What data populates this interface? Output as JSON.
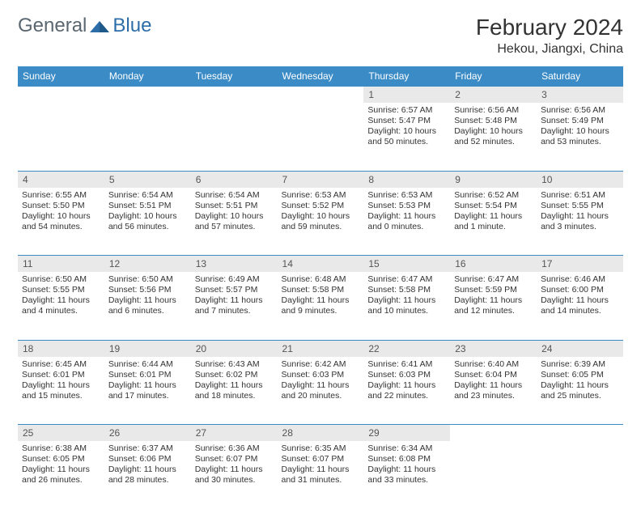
{
  "logo": {
    "text1": "General",
    "text2": "Blue"
  },
  "title": "February 2024",
  "location": "Hekou, Jiangxi, China",
  "colors": {
    "header_bg": "#3b8bc7",
    "header_text": "#ffffff",
    "daynum_bg": "#e9e9e9",
    "border": "#3b8bc7",
    "logo_gray": "#5a6770",
    "logo_blue": "#2d6ea8"
  },
  "dayNames": [
    "Sunday",
    "Monday",
    "Tuesday",
    "Wednesday",
    "Thursday",
    "Friday",
    "Saturday"
  ],
  "weeks": [
    [
      null,
      null,
      null,
      null,
      {
        "d": "1",
        "sr": "6:57 AM",
        "ss": "5:47 PM",
        "dl": "10 hours and 50 minutes."
      },
      {
        "d": "2",
        "sr": "6:56 AM",
        "ss": "5:48 PM",
        "dl": "10 hours and 52 minutes."
      },
      {
        "d": "3",
        "sr": "6:56 AM",
        "ss": "5:49 PM",
        "dl": "10 hours and 53 minutes."
      }
    ],
    [
      {
        "d": "4",
        "sr": "6:55 AM",
        "ss": "5:50 PM",
        "dl": "10 hours and 54 minutes."
      },
      {
        "d": "5",
        "sr": "6:54 AM",
        "ss": "5:51 PM",
        "dl": "10 hours and 56 minutes."
      },
      {
        "d": "6",
        "sr": "6:54 AM",
        "ss": "5:51 PM",
        "dl": "10 hours and 57 minutes."
      },
      {
        "d": "7",
        "sr": "6:53 AM",
        "ss": "5:52 PM",
        "dl": "10 hours and 59 minutes."
      },
      {
        "d": "8",
        "sr": "6:53 AM",
        "ss": "5:53 PM",
        "dl": "11 hours and 0 minutes."
      },
      {
        "d": "9",
        "sr": "6:52 AM",
        "ss": "5:54 PM",
        "dl": "11 hours and 1 minute."
      },
      {
        "d": "10",
        "sr": "6:51 AM",
        "ss": "5:55 PM",
        "dl": "11 hours and 3 minutes."
      }
    ],
    [
      {
        "d": "11",
        "sr": "6:50 AM",
        "ss": "5:55 PM",
        "dl": "11 hours and 4 minutes."
      },
      {
        "d": "12",
        "sr": "6:50 AM",
        "ss": "5:56 PM",
        "dl": "11 hours and 6 minutes."
      },
      {
        "d": "13",
        "sr": "6:49 AM",
        "ss": "5:57 PM",
        "dl": "11 hours and 7 minutes."
      },
      {
        "d": "14",
        "sr": "6:48 AM",
        "ss": "5:58 PM",
        "dl": "11 hours and 9 minutes."
      },
      {
        "d": "15",
        "sr": "6:47 AM",
        "ss": "5:58 PM",
        "dl": "11 hours and 10 minutes."
      },
      {
        "d": "16",
        "sr": "6:47 AM",
        "ss": "5:59 PM",
        "dl": "11 hours and 12 minutes."
      },
      {
        "d": "17",
        "sr": "6:46 AM",
        "ss": "6:00 PM",
        "dl": "11 hours and 14 minutes."
      }
    ],
    [
      {
        "d": "18",
        "sr": "6:45 AM",
        "ss": "6:01 PM",
        "dl": "11 hours and 15 minutes."
      },
      {
        "d": "19",
        "sr": "6:44 AM",
        "ss": "6:01 PM",
        "dl": "11 hours and 17 minutes."
      },
      {
        "d": "20",
        "sr": "6:43 AM",
        "ss": "6:02 PM",
        "dl": "11 hours and 18 minutes."
      },
      {
        "d": "21",
        "sr": "6:42 AM",
        "ss": "6:03 PM",
        "dl": "11 hours and 20 minutes."
      },
      {
        "d": "22",
        "sr": "6:41 AM",
        "ss": "6:03 PM",
        "dl": "11 hours and 22 minutes."
      },
      {
        "d": "23",
        "sr": "6:40 AM",
        "ss": "6:04 PM",
        "dl": "11 hours and 23 minutes."
      },
      {
        "d": "24",
        "sr": "6:39 AM",
        "ss": "6:05 PM",
        "dl": "11 hours and 25 minutes."
      }
    ],
    [
      {
        "d": "25",
        "sr": "6:38 AM",
        "ss": "6:05 PM",
        "dl": "11 hours and 26 minutes."
      },
      {
        "d": "26",
        "sr": "6:37 AM",
        "ss": "6:06 PM",
        "dl": "11 hours and 28 minutes."
      },
      {
        "d": "27",
        "sr": "6:36 AM",
        "ss": "6:07 PM",
        "dl": "11 hours and 30 minutes."
      },
      {
        "d": "28",
        "sr": "6:35 AM",
        "ss": "6:07 PM",
        "dl": "11 hours and 31 minutes."
      },
      {
        "d": "29",
        "sr": "6:34 AM",
        "ss": "6:08 PM",
        "dl": "11 hours and 33 minutes."
      },
      null,
      null
    ]
  ],
  "labels": {
    "sunrise": "Sunrise:",
    "sunset": "Sunset:",
    "daylight": "Daylight:"
  }
}
